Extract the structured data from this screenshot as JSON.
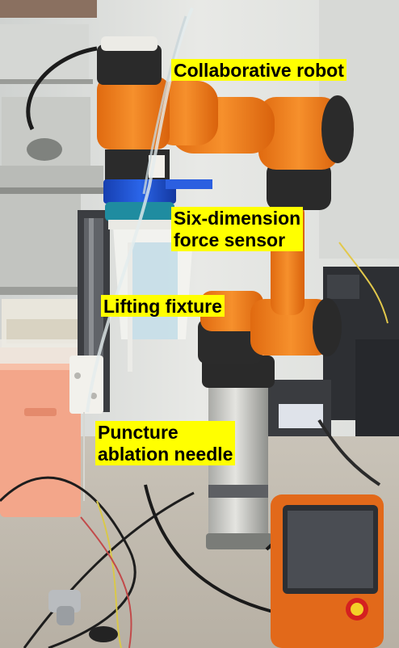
{
  "labels": {
    "collaborative_robot": "Collaborative robot",
    "force_sensor": [
      "Six-dimension",
      "force sensor"
    ],
    "lifting_fixture": "Lifting fixture",
    "ablation_needle": [
      "Puncture",
      "ablation needle"
    ]
  },
  "colors": {
    "label_background": "#ffff00",
    "robot_orange": "#f07d1a",
    "robot_dark": "#2a2a2a",
    "sensor_blue": "#1d4fd0",
    "box_pink": "#f3a68a"
  },
  "icons": [
    "robot-arm",
    "force-sensor",
    "lifting-fixture",
    "ablation-needle",
    "teach-pendant"
  ]
}
